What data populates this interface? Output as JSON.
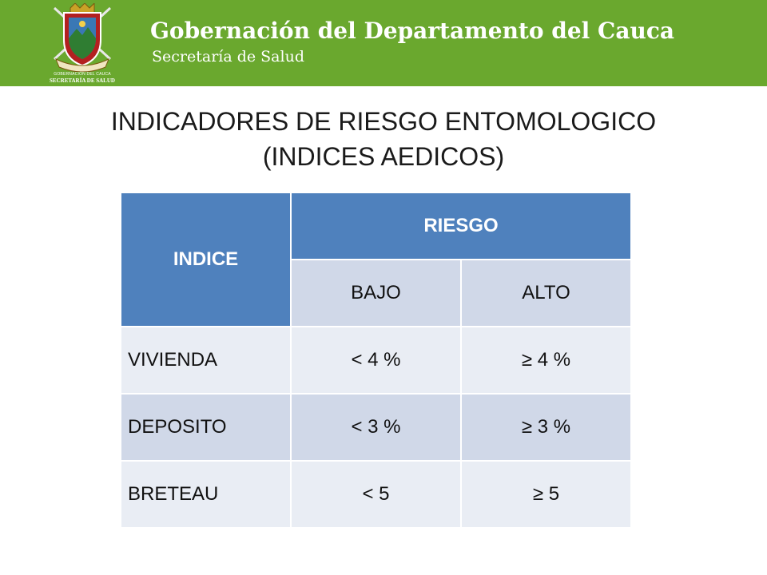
{
  "header": {
    "org_name": "Gobernación del Departamento del Cauca",
    "org_sub": "Secretaría de Salud",
    "logo_caption_1": "GOBERNACIÓN DEL CAUCA",
    "logo_caption_2": "SECRETARÍA DE SALUD",
    "logo_icon": "coat-of-arms-icon"
  },
  "title": {
    "line1": "INDICADORES DE RIESGO ENTOMOLOGICO",
    "line2": "(INDICES AEDICOS)"
  },
  "table": {
    "col_indice": "INDICE",
    "col_riesgo": "RIESGO",
    "col_bajo": "BAJO",
    "col_alto": "ALTO",
    "rows": [
      {
        "indice": "VIVIENDA",
        "bajo": "< 4 %",
        "alto": "≥ 4 %"
      },
      {
        "indice": "DEPOSITO",
        "bajo": "< 3 %",
        "alto": "≥ 3 %"
      },
      {
        "indice": "BRETEAU",
        "bajo": "< 5",
        "alto": "≥ 5"
      }
    ]
  },
  "colors": {
    "header_green": "#6aa82e",
    "table_header_blue": "#4f81bd",
    "row_light": "#e9edf4",
    "row_dark": "#d0d8e8"
  }
}
